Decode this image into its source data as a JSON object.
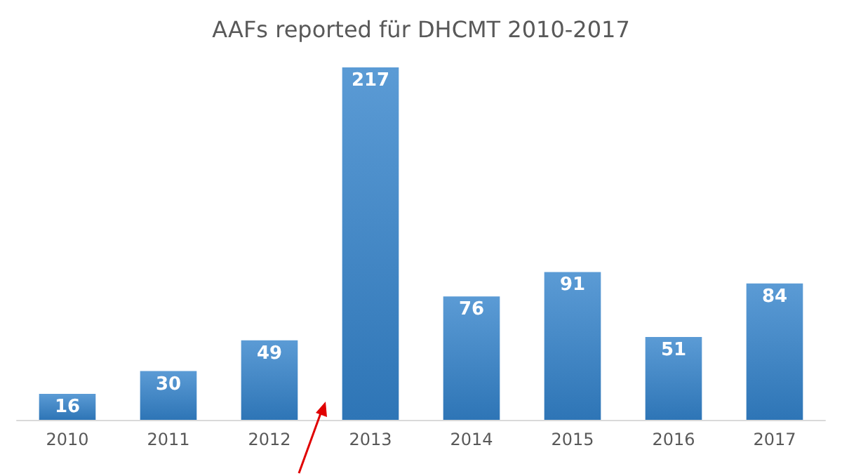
{
  "chart_data": {
    "type": "bar",
    "title": "AAFs reported für DHCMT 2010-2017",
    "categories": [
      "2010",
      "2011",
      "2012",
      "2013",
      "2014",
      "2015",
      "2016",
      "2017"
    ],
    "values": [
      16,
      30,
      49,
      217,
      76,
      91,
      51,
      84
    ],
    "color": "#5b9bd5",
    "data_labels": true
  }
}
